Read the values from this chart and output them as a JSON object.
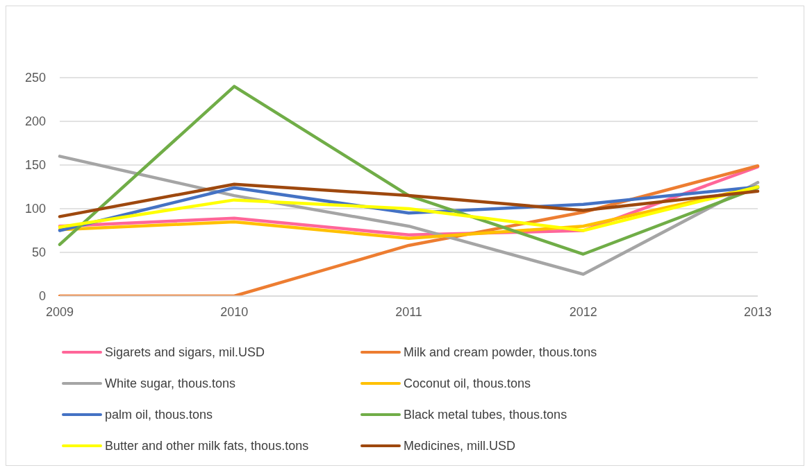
{
  "chart_data": {
    "type": "line",
    "categories": [
      "2009",
      "2010",
      "2011",
      "2012",
      "2013"
    ],
    "series": [
      {
        "name": "Sigarets and sigars, mil.USD",
        "color": "#ff6699",
        "values": [
          80,
          89,
          70,
          75,
          148
        ]
      },
      {
        "name": "Milk and cream powder, thous.tons",
        "color": "#ed7d31",
        "values": [
          0,
          0,
          58,
          96,
          149
        ]
      },
      {
        "name": "White sugar, thous.tons",
        "color": "#a5a5a5",
        "values": [
          160,
          115,
          80,
          25,
          130
        ]
      },
      {
        "name": "Coconut oil, thous.tons",
        "color": "#ffc000",
        "values": [
          76,
          85,
          66,
          80,
          125
        ]
      },
      {
        "name": "palm oil, thous.tons",
        "color": "#4472c4",
        "values": [
          75,
          124,
          95,
          105,
          125
        ]
      },
      {
        "name": "Black metal tubes, thous.tons",
        "color": "#70ad47",
        "values": [
          59,
          240,
          115,
          48,
          124
        ]
      },
      {
        "name": "Butter and other milk fats, thous.tons",
        "color": "#ffff00",
        "values": [
          79,
          110,
          100,
          75,
          125
        ]
      },
      {
        "name": "Medicines, mill.USD",
        "color": "#9e480e",
        "values": [
          91,
          128,
          115,
          98,
          120
        ]
      }
    ],
    "ylim": [
      0,
      250
    ],
    "yticks": [
      0,
      50,
      100,
      150,
      200,
      250
    ],
    "grid": "y",
    "legend": "bottom",
    "marker": "none",
    "line_style": "solid"
  }
}
